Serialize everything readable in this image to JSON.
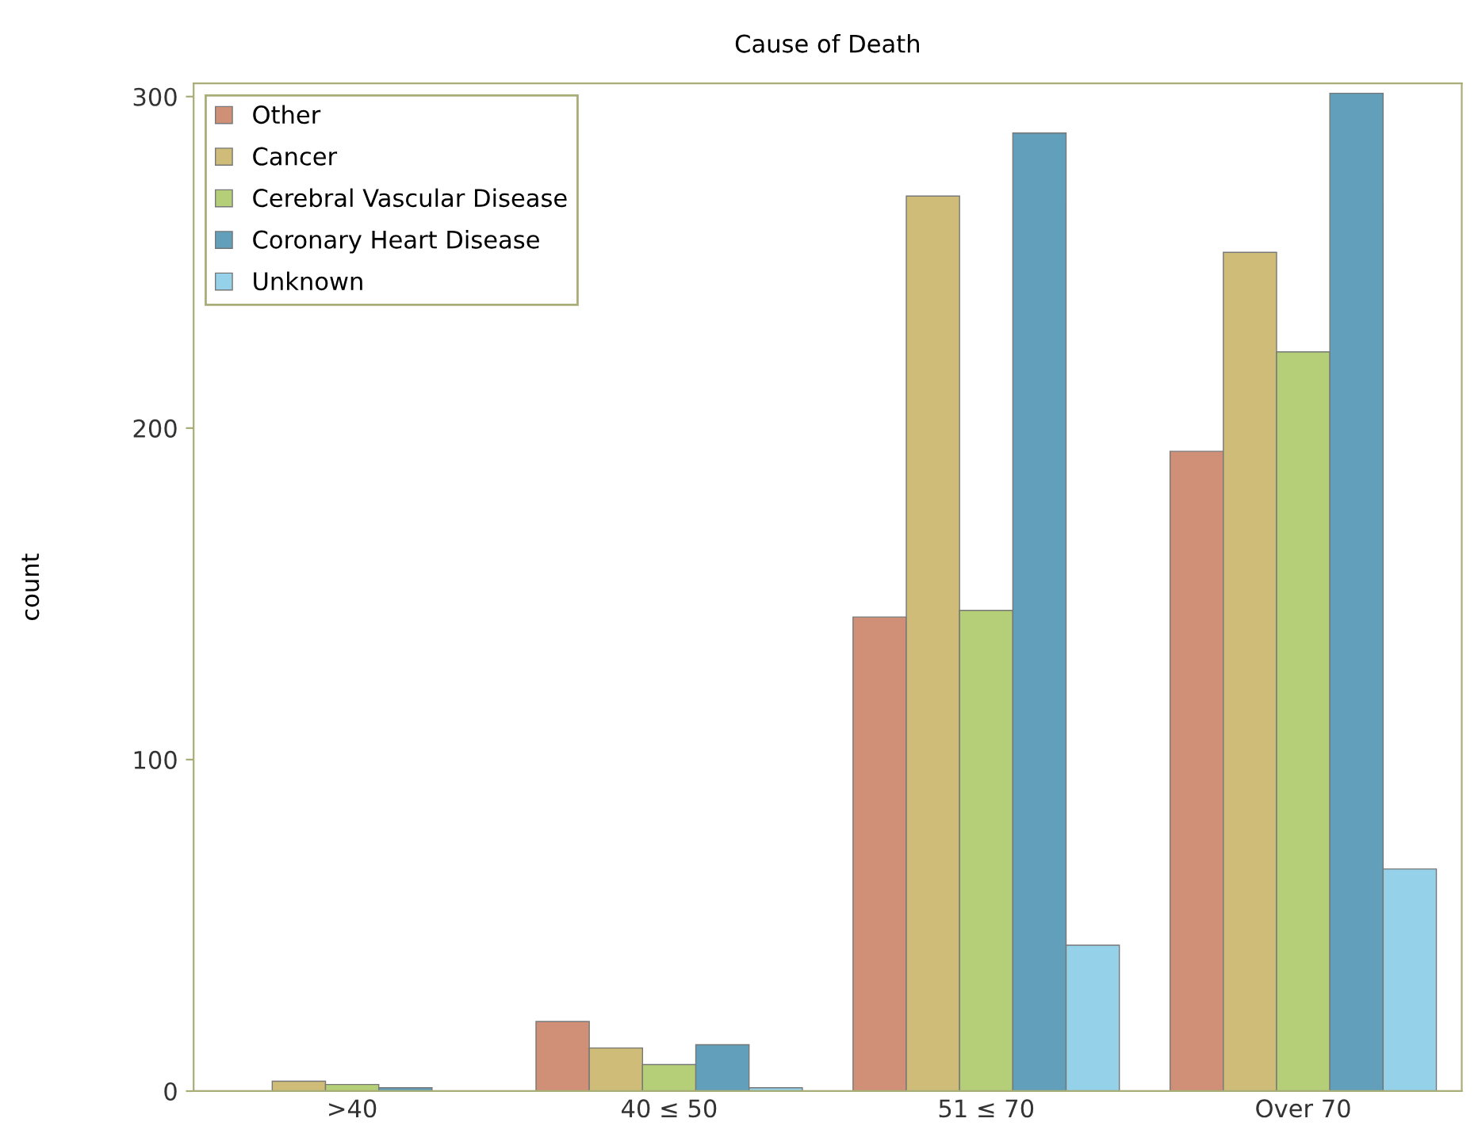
{
  "chart_data": {
    "type": "bar",
    "title": "Cause of Death",
    "ylabel": "count",
    "categories": [
      ">40",
      "40 ≤ 50",
      "51 ≤ 70",
      "Over 70"
    ],
    "series": [
      {
        "name": "Other",
        "color": "#cf9077",
        "values": [
          null,
          21,
          143,
          193
        ]
      },
      {
        "name": "Cancer",
        "color": "#cfbc78",
        "values": [
          3,
          13,
          270,
          253
        ]
      },
      {
        "name": "Cerebral Vascular Disease",
        "color": "#b5cf78",
        "values": [
          2,
          8,
          145,
          223
        ]
      },
      {
        "name": "Coronary Heart Disease",
        "color": "#619fba",
        "values": [
          1,
          14,
          289,
          301
        ]
      },
      {
        "name": "Unknown",
        "color": "#95d1e9",
        "values": [
          null,
          1,
          44,
          67
        ]
      }
    ],
    "ylim": [
      0,
      304
    ],
    "yticks": [
      0,
      100,
      200,
      300
    ],
    "grid": false,
    "legend": "top left"
  }
}
